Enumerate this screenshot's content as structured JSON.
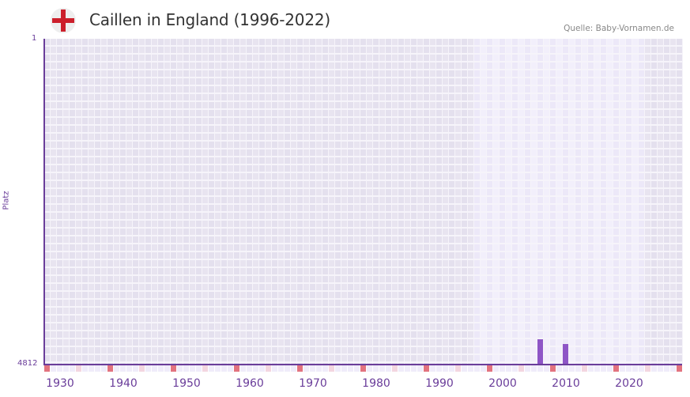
{
  "header": {
    "flag_icon": "england-flag-icon",
    "title": "Caillen in England (1996-2022)",
    "source": "Quelle: Baby-Vornamen.de"
  },
  "colors": {
    "axis": "#6a3d9a",
    "bar": "#8e56c6",
    "bg_outside_a": "#e4e0ee",
    "bg_outside_b": "#e8e4f0",
    "bg_inside_a": "#ece8f8",
    "bg_inside_b": "#f2effb",
    "strip_red": "#e2737f",
    "strip_pink": "#f3d6e0",
    "strip_light": "#f0ecfa"
  },
  "chart_data": {
    "type": "bar",
    "title": "Caillen in England (1996-2022)",
    "xlabel": "",
    "ylabel": "Platz",
    "y_axis_inverted": true,
    "ylim": [
      4812,
      1
    ],
    "y_ticks": [
      "1",
      "4812"
    ],
    "x_range": [
      1928,
      2028
    ],
    "x_ticks": [
      "1930",
      "1940",
      "1950",
      "1960",
      "1970",
      "1980",
      "1990",
      "2000",
      "2010",
      "2020"
    ],
    "data_range_highlight": [
      1996,
      2022
    ],
    "grid": true,
    "legend": null,
    "categories": [
      "2006",
      "2010"
    ],
    "values": [
      4450,
      4520
    ],
    "series": [
      {
        "name": "Platz",
        "x": [
          2006,
          2010
        ],
        "values": [
          4450,
          4520
        ]
      }
    ]
  }
}
